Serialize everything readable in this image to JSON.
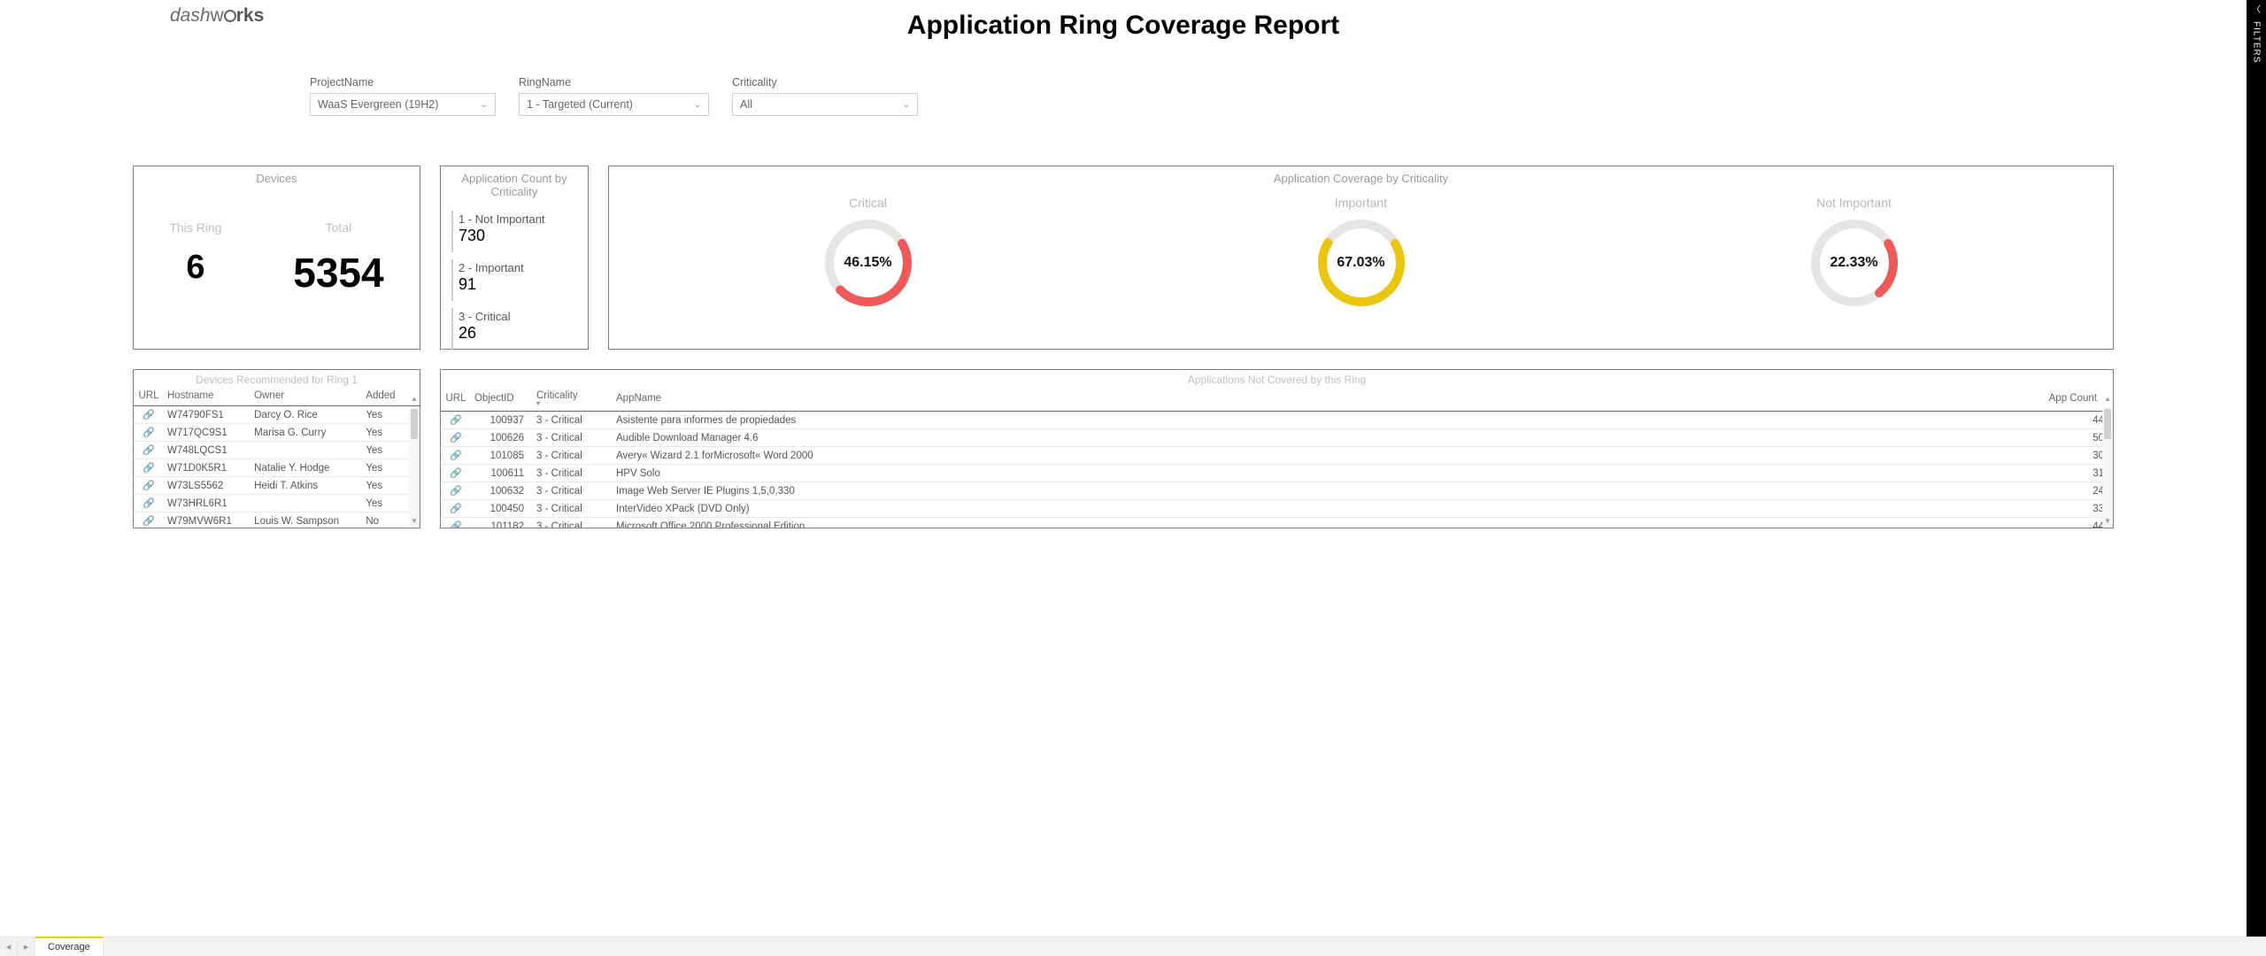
{
  "colors": {
    "card_border": "#808080",
    "muted_text": "#999999",
    "gauge_ring_bg": "#e5e5e5",
    "gauge_red": "#ee5a5a",
    "gauge_yellow": "#eac60e",
    "tab_active_accent": "#f2c811",
    "filters_bg": "#000000"
  },
  "logo": {
    "text_prefix": "dash",
    "text_suffix": "rks"
  },
  "header": {
    "title": "Application Ring Coverage Report"
  },
  "filters_sidebar": {
    "label": "FILTERS"
  },
  "slicers": {
    "project": {
      "label": "ProjectName",
      "value": "WaaS Evergreen (19H2)"
    },
    "ring": {
      "label": "RingName",
      "value": "1 - Targeted (Current)"
    },
    "crit": {
      "label": "Criticality",
      "value": "All"
    }
  },
  "devices_card": {
    "title": "Devices",
    "this_ring_label": "This Ring",
    "total_label": "Total",
    "this_ring": "6",
    "total": "5354"
  },
  "crit_card": {
    "title": "Application Count by Criticality",
    "items": [
      {
        "label": "1 - Not Important",
        "value": "730"
      },
      {
        "label": "2 - Important",
        "value": "91"
      },
      {
        "label": "3 - Critical",
        "value": "26"
      }
    ]
  },
  "coverage_card": {
    "title": "Application Coverage by Criticality",
    "gauges": [
      {
        "label": "Critical",
        "pct": 46.15,
        "pct_text": "46.15%",
        "color": "#ee5a5a"
      },
      {
        "label": "Important",
        "pct": 67.03,
        "pct_text": "67.03%",
        "color": "#eac60e"
      },
      {
        "label": "Not Important",
        "pct": 22.33,
        "pct_text": "22.33%",
        "color": "#ee5a5a"
      }
    ]
  },
  "devices_table": {
    "title": "Devices Recommended for Ring 1",
    "columns": [
      "URL",
      "Hostname",
      "Owner",
      "Added"
    ],
    "rows": [
      {
        "host": "W74790FS1",
        "owner": "Darcy O. Rice",
        "added": "Yes"
      },
      {
        "host": "W717QC9S1",
        "owner": "Marisa G. Curry",
        "added": "Yes"
      },
      {
        "host": "W748LQCS1",
        "owner": "",
        "added": "Yes"
      },
      {
        "host": "W71D0K5R1",
        "owner": "Natalie Y. Hodge",
        "added": "Yes"
      },
      {
        "host": "W73LS5562",
        "owner": "Heidi T. Atkins",
        "added": "Yes"
      },
      {
        "host": "W73HRL6R1",
        "owner": "",
        "added": "Yes"
      },
      {
        "host": "W79MVW6R1",
        "owner": "Louis W. Sampson",
        "added": "No"
      }
    ]
  },
  "apps_table": {
    "title": "Applications Not Covered by this Ring",
    "columns": [
      "URL",
      "ObjectID",
      "Criticality",
      "AppName",
      "App Count"
    ],
    "rows": [
      {
        "id": "100937",
        "crit": "3 - Critical",
        "name": "Asistente para informes de propiedades",
        "count": "44"
      },
      {
        "id": "100626",
        "crit": "3 - Critical",
        "name": "Audible Download Manager 4.6",
        "count": "50"
      },
      {
        "id": "101085",
        "crit": "3 - Critical",
        "name": "Avery« Wizard 2.1 forMicrosoft« Word 2000",
        "count": "30"
      },
      {
        "id": "100611",
        "crit": "3 - Critical",
        "name": "HPV Solo",
        "count": "31"
      },
      {
        "id": "100632",
        "crit": "3 - Critical",
        "name": "Image Web Server IE Plugins 1,5,0,330",
        "count": "24"
      },
      {
        "id": "100450",
        "crit": "3 - Critical",
        "name": "InterVideo XPack (DVD Only)",
        "count": "33"
      },
      {
        "id": "101182",
        "crit": "3 - Critical",
        "name": "Microsoft Office 2000 Professional Edition",
        "count": "44"
      }
    ]
  },
  "tabbar": {
    "active_tab": "Coverage"
  }
}
